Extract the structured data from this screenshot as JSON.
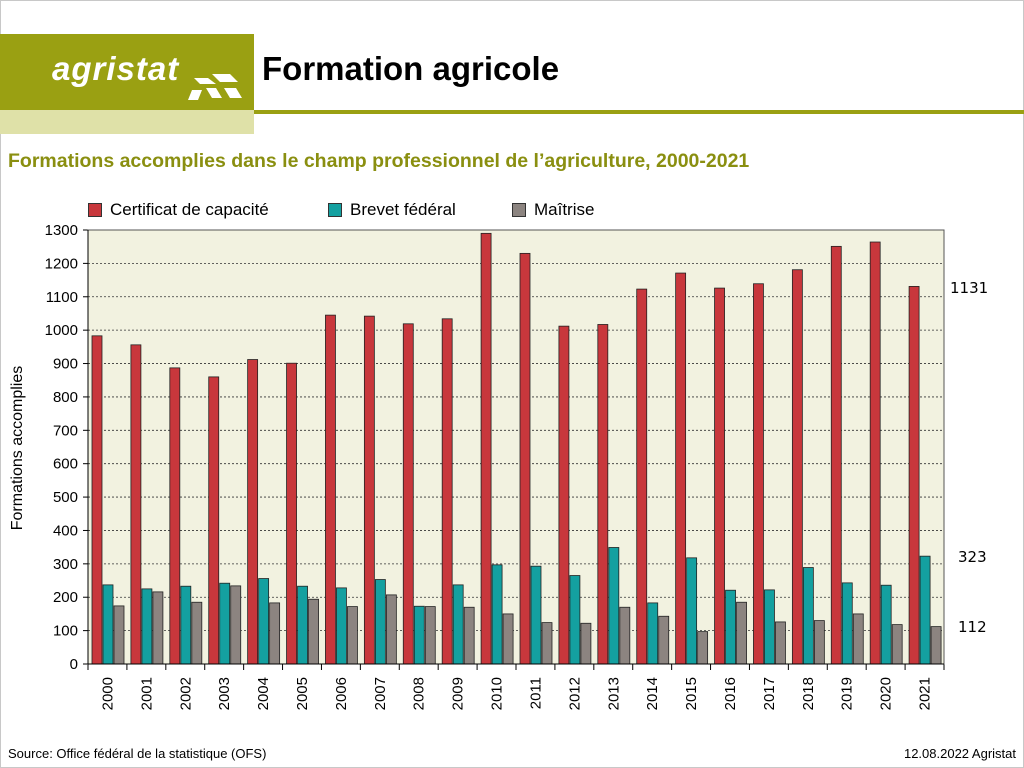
{
  "header": {
    "logo_text": "agristat",
    "title": "Formation agricole",
    "accent_color": "#9aa012",
    "subtitle_color": "#8a8f10"
  },
  "subtitle": "Formations accomplies dans le champ professionnel de l’agriculture, 2000-2021",
  "chart_data": {
    "type": "bar",
    "ylabel": "Formations  accomplies",
    "ylim": [
      0,
      1300
    ],
    "yticks": [
      0,
      100,
      200,
      300,
      400,
      500,
      600,
      700,
      800,
      900,
      1000,
      1100,
      1200,
      1300
    ],
    "grid": true,
    "legend_position": "top",
    "plot_background": "#f2f2e0",
    "categories": [
      "2000",
      "2001",
      "2002",
      "2003",
      "2004",
      "2005",
      "2006",
      "2007",
      "2008",
      "2009",
      "2010",
      "2011",
      "2012",
      "2013",
      "2014",
      "2015",
      "2016",
      "2017",
      "2018",
      "2019",
      "2020",
      "2021"
    ],
    "series": [
      {
        "name": "Certificat de capacité",
        "color": "#c8373c",
        "values": [
          983,
          956,
          887,
          860,
          912,
          901,
          1045,
          1042,
          1019,
          1034,
          1290,
          1230,
          1012,
          1017,
          1123,
          1171,
          1126,
          1139,
          1181,
          1251,
          1264,
          1131
        ]
      },
      {
        "name": "Brevet fédéral",
        "color": "#14a0a0",
        "values": [
          237,
          225,
          233,
          242,
          256,
          233,
          228,
          253,
          173,
          237,
          297,
          293,
          265,
          349,
          183,
          318,
          221,
          222,
          289,
          243,
          236,
          323
        ]
      },
      {
        "name": "Maîtrise",
        "color": "#8c8480",
        "values": [
          174,
          216,
          185,
          234,
          183,
          194,
          172,
          207,
          172,
          170,
          150,
          124,
          122,
          170,
          143,
          97,
          185,
          126,
          130,
          150,
          118,
          112
        ]
      }
    ],
    "end_labels": [
      "1131",
      "323",
      "112"
    ]
  },
  "footer": {
    "source": "Source: Office fédéral de la statistique (OFS)",
    "date_credit": "12.08.2022 Agristat"
  }
}
